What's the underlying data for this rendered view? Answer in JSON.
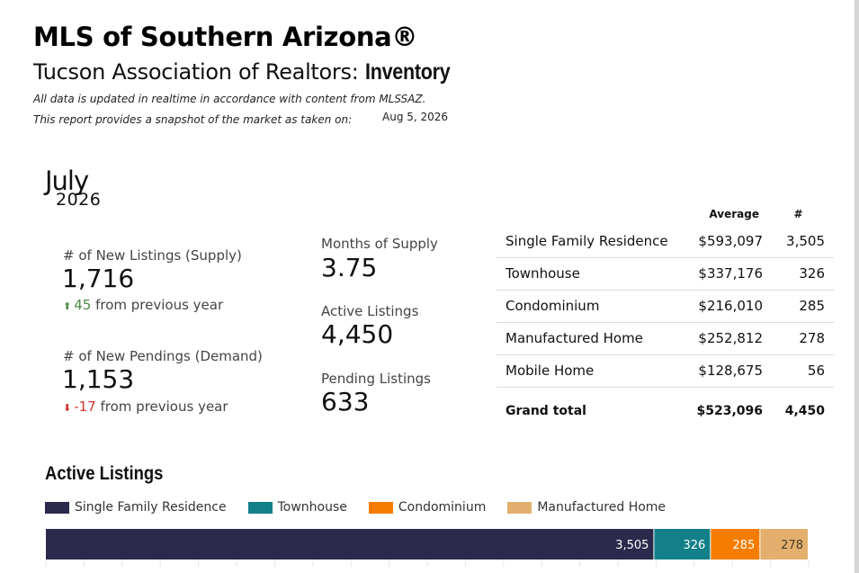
{
  "header": {
    "title": "MLS of Southern Arizona®",
    "subtitle_prefix": "Tucson Association of Realtors: ",
    "subtitle_bold": "Inventory",
    "note1": "All data is updated in realtime in accordance with content from MLSSAZ.",
    "note2": "This report provides a snapshot of the market as taken on:",
    "snapshot_date": "Aug 5, 2026"
  },
  "period": {
    "month": "July",
    "year": "2026"
  },
  "kpis": {
    "new_listings": {
      "label": "# of New Listings (Supply)",
      "value": "1,716",
      "delta": "45",
      "delta_suffix": "from previous year",
      "direction": "up"
    },
    "new_pendings": {
      "label": "# of New Pendings (Demand)",
      "value": "1,153",
      "delta": "-17",
      "delta_suffix": "from previous year",
      "direction": "down"
    },
    "months_supply": {
      "label": "Months of Supply",
      "value": "3.75"
    },
    "active_listings": {
      "label": "Active Listings",
      "value": "4,450"
    },
    "pending_listings": {
      "label": "Pending Listings",
      "value": "633"
    }
  },
  "table": {
    "col_avg": "Average",
    "col_count": "#",
    "rows": [
      {
        "type": "Single Family Residence",
        "avg": "$593,097",
        "count": "3,505"
      },
      {
        "type": "Townhouse",
        "avg": "$337,176",
        "count": "326"
      },
      {
        "type": "Condominium",
        "avg": "$216,010",
        "count": "285"
      },
      {
        "type": "Manufactured Home",
        "avg": "$252,812",
        "count": "278"
      },
      {
        "type": "Mobile Home",
        "avg": "$128,675",
        "count": "56"
      }
    ],
    "total": {
      "type": "Grand total",
      "avg": "$523,096",
      "count": "4,450"
    }
  },
  "chart_data": {
    "type": "bar",
    "title": "Active Listings",
    "orientation": "horizontal-stacked",
    "series": [
      {
        "name": "Single Family Residence",
        "value": 3505,
        "label": "3,505",
        "color": "#2b2a4c"
      },
      {
        "name": "Townhouse",
        "value": 326,
        "label": "326",
        "color": "#138089"
      },
      {
        "name": "Condominium",
        "value": 285,
        "label": "285",
        "color": "#f57c00"
      },
      {
        "name": "Manufactured Home",
        "value": 278,
        "label": "278",
        "color": "#e2b06c"
      }
    ]
  },
  "colors": {
    "delta_up": "#4c8a44",
    "delta_down": "#d0342c"
  }
}
